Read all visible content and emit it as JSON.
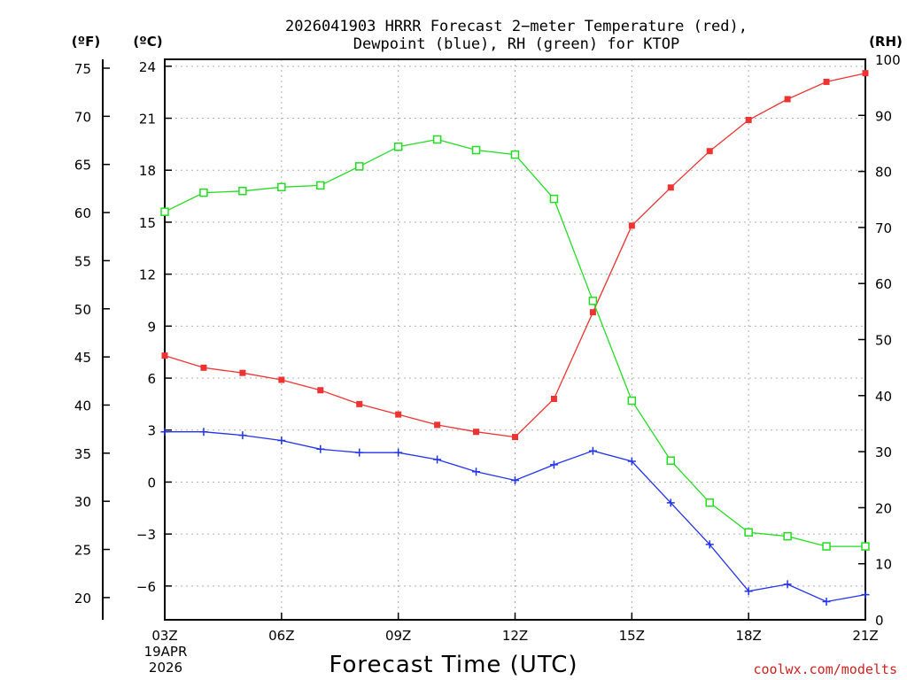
{
  "chart_data": {
    "type": "line",
    "title_lines": [
      "2026041903 HRRR Forecast 2−meter Temperature (red),",
      "Dewpoint (blue), RH (green) for KTOP"
    ],
    "xlabel": "Forecast Time (UTC)",
    "x_tick_labels": [
      "03Z",
      "06Z",
      "09Z",
      "12Z",
      "15Z",
      "18Z",
      "21Z"
    ],
    "x_date_lines": [
      "19APR",
      "2026"
    ],
    "x_hours": [
      3,
      4,
      5,
      6,
      7,
      8,
      9,
      10,
      11,
      12,
      13,
      14,
      15,
      16,
      17,
      18,
      19,
      20,
      21
    ],
    "xlim": [
      3,
      21
    ],
    "axes": {
      "fahrenheit": {
        "unit_label": "(ºF)",
        "ticks": [
          75,
          70,
          65,
          60,
          55,
          50,
          45,
          40,
          35,
          30,
          25,
          20
        ],
        "tick_labels": [
          "75",
          "70",
          "65",
          "60",
          "55",
          "50",
          "45",
          "40",
          "35",
          "30",
          "25",
          "20"
        ]
      },
      "celsius": {
        "unit_label": "(ºC)",
        "ticks": [
          24,
          21,
          18,
          15,
          12,
          9,
          6,
          3,
          0,
          -3,
          -6
        ],
        "tick_labels": [
          "24",
          "21",
          "18",
          "15",
          "12",
          "9",
          "6",
          "3",
          "0",
          "−3",
          "−6"
        ],
        "ylim": [
          -7.95,
          24.4
        ]
      },
      "rh": {
        "unit_label": "(RH)",
        "ticks": [
          100,
          90,
          80,
          70,
          60,
          50,
          40,
          30,
          20,
          10,
          0
        ],
        "tick_labels": [
          "100",
          "90",
          "80",
          "70",
          "60",
          "50",
          "40",
          "30",
          "20",
          "10",
          "0"
        ],
        "ylim": [
          0,
          100
        ]
      }
    },
    "series": [
      {
        "name": "Temperature",
        "axis": "celsius",
        "color": "#ee3333",
        "marker": "filled-square",
        "values": [
          7.3,
          6.6,
          6.3,
          5.9,
          5.3,
          4.5,
          3.9,
          3.3,
          2.9,
          2.6,
          4.8,
          9.8,
          14.8,
          17.0,
          19.1,
          20.9,
          22.1,
          23.1,
          23.6
        ]
      },
      {
        "name": "Dewpoint",
        "axis": "celsius",
        "color": "#2233ee",
        "marker": "plus",
        "values": [
          2.9,
          2.9,
          2.7,
          2.4,
          1.9,
          1.7,
          1.7,
          1.3,
          0.6,
          0.1,
          1.0,
          1.8,
          1.2,
          -1.2,
          -3.6,
          -6.3,
          -5.9,
          -6.9,
          -6.5
        ]
      },
      {
        "name": "Relative Humidity",
        "axis": "rh",
        "color": "#22dd22",
        "marker": "open-square",
        "values": [
          72.8,
          76.2,
          76.5,
          77.2,
          77.5,
          80.9,
          84.4,
          85.7,
          83.8,
          83.0,
          75.1,
          56.9,
          39.1,
          28.4,
          20.9,
          15.6,
          14.9,
          13.1,
          13.1
        ]
      }
    ]
  },
  "credit": "coolwx.com/modelts"
}
